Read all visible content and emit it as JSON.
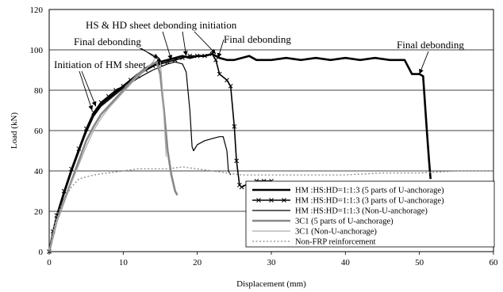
{
  "chart_data": {
    "type": "line",
    "title": "",
    "xlabel": "Displacement (mm)",
    "ylabel": "Load (kN)",
    "xlim": [
      0,
      60
    ],
    "ylim": [
      0,
      120
    ],
    "xticks": [
      0,
      10,
      20,
      30,
      40,
      50,
      60
    ],
    "yticks": [
      0,
      20,
      40,
      60,
      80,
      100,
      120
    ],
    "grid": "horizontal",
    "legend_position": "bottom-right",
    "series": [
      {
        "name": "HM :HS:HD=1:1:3 (5 parts of U-anchorage)",
        "color": "#000000",
        "style": "thick",
        "points": [
          [
            0,
            0
          ],
          [
            0.5,
            9
          ],
          [
            1,
            17
          ],
          [
            2,
            29
          ],
          [
            3,
            40
          ],
          [
            4,
            50
          ],
          [
            5,
            60
          ],
          [
            6,
            68
          ],
          [
            7,
            73
          ],
          [
            8,
            76
          ],
          [
            9,
            79
          ],
          [
            10,
            82
          ],
          [
            11,
            85
          ],
          [
            12,
            88
          ],
          [
            13,
            90
          ],
          [
            14,
            92
          ],
          [
            15,
            94
          ],
          [
            16,
            95
          ],
          [
            17,
            96
          ],
          [
            18,
            97
          ],
          [
            19,
            96
          ],
          [
            20,
            97
          ],
          [
            21,
            97
          ],
          [
            22,
            98
          ],
          [
            23,
            96
          ],
          [
            24,
            95
          ],
          [
            25,
            95
          ],
          [
            26,
            96
          ],
          [
            27,
            97
          ],
          [
            28,
            95
          ],
          [
            30,
            95
          ],
          [
            32,
            96
          ],
          [
            34,
            95
          ],
          [
            36,
            96
          ],
          [
            38,
            95
          ],
          [
            40,
            96
          ],
          [
            42,
            95
          ],
          [
            44,
            96
          ],
          [
            46,
            95
          ],
          [
            48,
            95
          ],
          [
            49,
            88
          ],
          [
            50,
            88
          ],
          [
            50.5,
            87
          ],
          [
            51,
            60
          ],
          [
            51.3,
            45
          ],
          [
            51.5,
            36
          ]
        ]
      },
      {
        "name": "HM :HS:HD=1:1:3 (3 parts of U-anchorage)",
        "color": "#000000",
        "style": "marker-x",
        "points": [
          [
            0,
            0
          ],
          [
            0.5,
            10
          ],
          [
            1,
            18
          ],
          [
            2,
            30
          ],
          [
            3,
            41
          ],
          [
            4,
            51
          ],
          [
            5,
            61
          ],
          [
            6,
            69
          ],
          [
            7,
            74
          ],
          [
            8,
            77
          ],
          [
            9,
            80
          ],
          [
            10,
            82
          ],
          [
            11,
            85
          ],
          [
            12,
            87
          ],
          [
            13,
            90
          ],
          [
            14,
            92
          ],
          [
            15,
            93
          ],
          [
            16,
            94
          ],
          [
            17,
            95
          ],
          [
            18,
            96
          ],
          [
            19,
            97
          ],
          [
            20,
            97
          ],
          [
            21,
            97
          ],
          [
            22,
            98
          ],
          [
            22.5,
            95
          ],
          [
            23,
            88
          ],
          [
            24,
            85
          ],
          [
            24.5,
            82
          ],
          [
            25,
            62
          ],
          [
            25.3,
            45
          ],
          [
            25.7,
            33
          ],
          [
            26,
            32
          ],
          [
            27,
            34
          ],
          [
            28,
            35
          ],
          [
            29,
            35
          ],
          [
            30,
            35
          ]
        ]
      },
      {
        "name": "HM :HS:HD=1:1:3 (Non-U-anchorage)",
        "color": "#000000",
        "style": "thin",
        "points": [
          [
            0,
            0
          ],
          [
            1,
            17
          ],
          [
            2,
            29
          ],
          [
            3,
            40
          ],
          [
            4,
            50
          ],
          [
            5,
            59
          ],
          [
            6,
            67
          ],
          [
            7,
            72
          ],
          [
            8,
            75
          ],
          [
            9,
            78
          ],
          [
            10,
            81
          ],
          [
            12,
            86
          ],
          [
            14,
            90
          ],
          [
            16,
            93
          ],
          [
            17,
            94
          ],
          [
            18,
            93
          ],
          [
            18.5,
            89
          ],
          [
            19,
            70
          ],
          [
            19.3,
            52
          ],
          [
            19.5,
            50
          ],
          [
            20,
            53
          ],
          [
            21,
            55
          ],
          [
            22,
            56
          ],
          [
            23,
            57
          ],
          [
            23.5,
            57
          ],
          [
            24,
            50
          ],
          [
            24.2,
            40
          ],
          [
            24.5,
            38
          ]
        ]
      },
      {
        "name": "3C1 (5 parts of U-anchorage)",
        "color": "#888888",
        "style": "thick",
        "points": [
          [
            0,
            0
          ],
          [
            1,
            15
          ],
          [
            2,
            25
          ],
          [
            3,
            35
          ],
          [
            4,
            45
          ],
          [
            5,
            55
          ],
          [
            6,
            62
          ],
          [
            7,
            68
          ],
          [
            8,
            72
          ],
          [
            9,
            76
          ],
          [
            10,
            80
          ],
          [
            11,
            84
          ],
          [
            12,
            88
          ],
          [
            13,
            91
          ],
          [
            14,
            93
          ],
          [
            14.5,
            94
          ],
          [
            15,
            88
          ],
          [
            15.5,
            70
          ],
          [
            16,
            50
          ],
          [
            16.5,
            38
          ],
          [
            17,
            30
          ],
          [
            17.3,
            28
          ]
        ]
      },
      {
        "name": "3C1 (Non-U-anchorage)",
        "color": "#aaaaaa",
        "style": "thin",
        "points": [
          [
            0,
            0
          ],
          [
            1,
            15
          ],
          [
            2,
            25
          ],
          [
            3,
            34
          ],
          [
            4,
            43
          ],
          [
            5,
            52
          ],
          [
            6,
            60
          ],
          [
            7,
            66
          ],
          [
            8,
            71
          ],
          [
            9,
            75
          ],
          [
            10,
            79
          ],
          [
            11,
            83
          ],
          [
            12,
            87
          ],
          [
            13,
            90
          ],
          [
            13.5,
            92
          ],
          [
            14,
            94
          ],
          [
            14.5,
            97
          ],
          [
            15,
            95
          ],
          [
            15.3,
            80
          ],
          [
            15.6,
            60
          ],
          [
            15.8,
            47
          ]
        ]
      },
      {
        "name": "Non-FRP reinforcement",
        "color": "#888888",
        "style": "dotted",
        "points": [
          [
            0,
            0
          ],
          [
            0.5,
            10
          ],
          [
            1,
            18
          ],
          [
            2,
            26
          ],
          [
            3,
            32
          ],
          [
            4,
            36
          ],
          [
            5,
            37
          ],
          [
            6,
            38
          ],
          [
            8,
            39
          ],
          [
            10,
            40
          ],
          [
            12,
            41
          ],
          [
            14,
            41
          ],
          [
            16,
            41
          ],
          [
            18,
            42
          ],
          [
            20,
            41
          ],
          [
            22,
            40
          ],
          [
            24,
            39
          ],
          [
            26,
            38
          ],
          [
            30,
            38
          ],
          [
            35,
            38
          ],
          [
            40,
            38
          ],
          [
            45,
            39
          ],
          [
            50,
            39
          ],
          [
            55,
            40
          ],
          [
            60,
            40
          ]
        ]
      }
    ],
    "annotations": [
      {
        "text": "HS & HD sheet debonding initiation",
        "arrows_to": [
          [
            16.5,
            95
          ],
          [
            18.5,
            97
          ],
          [
            22.5,
            98
          ]
        ]
      },
      {
        "text": "Final debonding",
        "arrows_to": [
          [
            14.8,
            96
          ],
          [
            15.2,
            94
          ]
        ]
      },
      {
        "text": "Final debonding",
        "arrows_to": [
          [
            22.8,
            96
          ]
        ]
      },
      {
        "text": "Initiation of HM sheet",
        "arrows_to": [
          [
            5.8,
            70
          ],
          [
            6.3,
            72
          ]
        ]
      },
      {
        "text": "Final debonding",
        "arrows_to": [
          [
            50,
            88
          ]
        ]
      }
    ]
  }
}
